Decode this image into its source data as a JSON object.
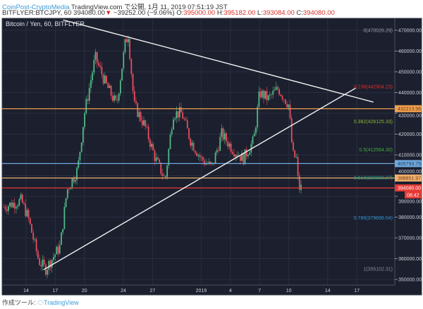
{
  "header": {
    "author": "CoinPost-CryptoMedia",
    "published": "TradingView.com で公開, 1月 11, 2019 07:51:19 JST",
    "symbol": "BITFLYER:BTCJPY, 60",
    "last": "394080.00",
    "change": "−39252.00 (−9.06%)",
    "o_label": "O:",
    "o": "395000.00",
    "h_label": "H:",
    "h": "395182.00",
    "l_label": "L:",
    "l": "393084.00",
    "c_label": "C:",
    "c": "394080.00"
  },
  "footer": {
    "label": "作成ツール:",
    "brand": "TradingView"
  },
  "chart_data": {
    "type": "candlestick",
    "title": "Bitcoin / Yen, 60, BITFLYER",
    "x_unit": "days since Dec 14, 2018",
    "xlim": [
      -2.4,
      38
    ],
    "ylim": [
      347000,
      474500
    ],
    "y_ticks": [
      "470000.00",
      "460000.00",
      "450000.00",
      "440000.00",
      "430000.00",
      "420000.00",
      "410000.00",
      "400000.00",
      "390000.00",
      "380000.00",
      "370000.00",
      "360000.00",
      "350000.00"
    ],
    "y_tick_values": [
      470000,
      460000,
      450000,
      440000,
      430000,
      420000,
      410000,
      400000,
      390000,
      380000,
      370000,
      360000,
      350000
    ],
    "x_ticks": [
      {
        "label": "14",
        "day": 0
      },
      {
        "label": "17",
        "day": 3
      },
      {
        "label": "20",
        "day": 6
      },
      {
        "label": "24",
        "day": 10
      },
      {
        "label": "27",
        "day": 13
      },
      {
        "label": "2019",
        "day": 18
      },
      {
        "label": "4",
        "day": 21
      },
      {
        "label": "7",
        "day": 24
      },
      {
        "label": "10",
        "day": 27
      },
      {
        "label": "14",
        "day": 31
      },
      {
        "label": "17",
        "day": 34
      }
    ],
    "price_path": [
      [
        -2.3,
        385000
      ],
      [
        -0.5,
        388000
      ],
      [
        0.2,
        380000
      ],
      [
        1.3,
        359000
      ],
      [
        2.0,
        355000
      ],
      [
        3.5,
        366000
      ],
      [
        4.2,
        393000
      ],
      [
        5.3,
        403000
      ],
      [
        6.0,
        430000
      ],
      [
        7.1,
        457000
      ],
      [
        8.2,
        444000
      ],
      [
        9.3,
        434000
      ],
      [
        10.2,
        464000
      ],
      [
        10.5,
        468000
      ],
      [
        11.1,
        434000
      ],
      [
        12.2,
        424000
      ],
      [
        13.3,
        408000
      ],
      [
        14.3,
        398000
      ],
      [
        15.1,
        430000
      ],
      [
        16.0,
        430000
      ],
      [
        16.9,
        417000
      ],
      [
        18.0,
        408000
      ],
      [
        19.1,
        404000
      ],
      [
        20.1,
        420000
      ],
      [
        21.2,
        413000
      ],
      [
        22.3,
        408000
      ],
      [
        23.4,
        417000
      ],
      [
        24.0,
        440000
      ],
      [
        24.9,
        437000
      ],
      [
        25.9,
        442000
      ],
      [
        27.0,
        434000
      ],
      [
        27.4,
        410000
      ],
      [
        27.8,
        408000
      ],
      [
        28.0,
        394000
      ],
      [
        28.3,
        394080
      ]
    ],
    "fib_levels": [
      {
        "label": "0(470026.29)",
        "price": 470026.29,
        "color": "#9aa0ad"
      },
      {
        "label": "0.236(442904.23)",
        "price": 442904.23,
        "color": "#d9312a"
      },
      {
        "label": "0.382(426125.33)",
        "price": 426125.33,
        "color": "#8fb82e"
      },
      {
        "label": "0.5(412564.30)",
        "price": 412564.3,
        "color": "#3fae3a"
      },
      {
        "label": "0.618(399003.27)",
        "price": 399003.27,
        "color": "#19a88a"
      },
      {
        "label": "0.786(379696.04)",
        "price": 379696.04,
        "color": "#2f8fd0"
      },
      {
        "label": "1(355102.31)",
        "price": 355102.31,
        "color": "#8a909c"
      }
    ],
    "horizontal_lines": [
      {
        "label": "432213.96",
        "price": 432213.96,
        "color": "#f0a050",
        "text": "#6b3d10"
      },
      {
        "label": "405793.75",
        "price": 405793.75,
        "color": "#6fa8dc",
        "text": "#1d3a5a"
      },
      {
        "label": "398851.97",
        "price": 398851.97,
        "color": "#f0b070",
        "text": "#6b3d10"
      },
      {
        "label": "394080.00",
        "price": 394080.0,
        "color": "#e53935",
        "text": "#ffffff"
      }
    ],
    "countdown": "08:42",
    "trendlines": [
      {
        "name": "upper",
        "from": [
          3.8,
          475000
        ],
        "to": [
          35.7,
          435400
        ]
      },
      {
        "name": "lower",
        "from": [
          1.8,
          354700
        ],
        "to": [
          33.9,
          442200
        ]
      }
    ],
    "colors": {
      "up": "#53b987",
      "down": "#eb4d5c",
      "bg": "#1b1f2e",
      "grid": "#2a2f40"
    }
  }
}
